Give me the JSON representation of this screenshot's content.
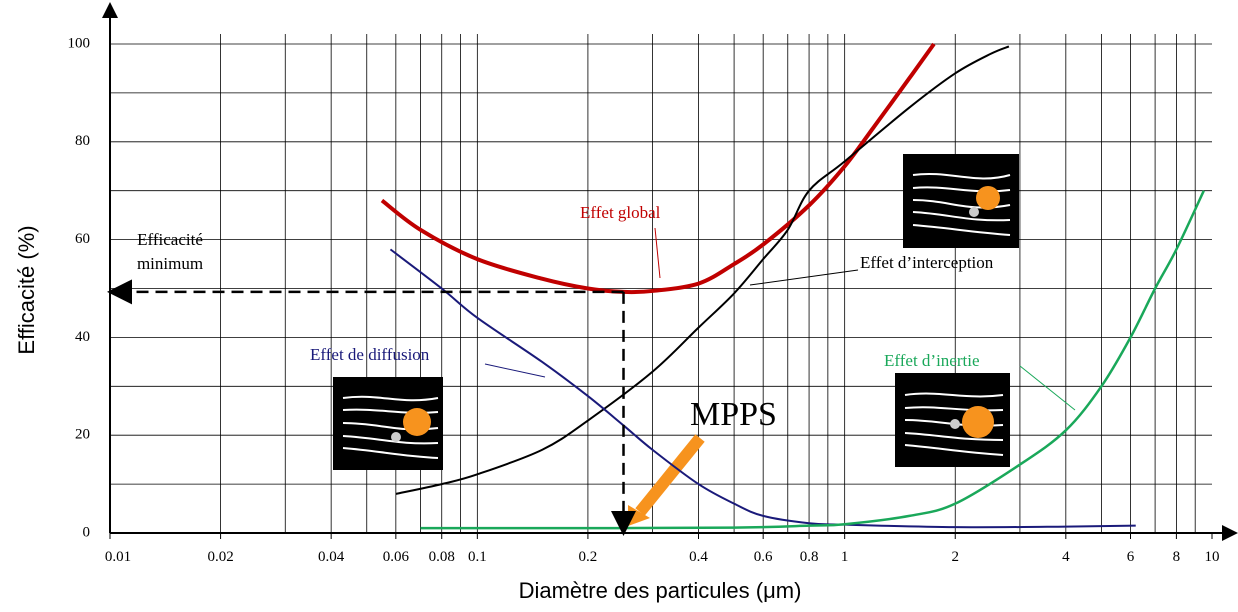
{
  "chart_data": {
    "type": "line",
    "x_label": "Diamètre des particules (μm)",
    "y_label": "Efficacité (%)",
    "xlim": [
      0.01,
      10
    ],
    "ylim": [
      0,
      100
    ],
    "log_x": true,
    "grid": true,
    "xticks": [
      0.01,
      0.02,
      0.04,
      0.06,
      0.08,
      0.1,
      0.2,
      0.4,
      0.6,
      0.8,
      1,
      2,
      4,
      6,
      8,
      10
    ],
    "yticks": [
      0,
      20,
      40,
      60,
      80,
      100
    ],
    "series": [
      {
        "name": "Effet global",
        "color": "#c00000",
        "x": [
          0.055,
          0.07,
          0.1,
          0.15,
          0.2,
          0.25,
          0.3,
          0.4,
          0.5,
          0.6,
          0.8,
          1,
          1.2,
          1.5,
          1.75
        ],
        "values": [
          68,
          62,
          56,
          52,
          50,
          49.3,
          49.5,
          51,
          55,
          59,
          67,
          75,
          83,
          93,
          100
        ]
      },
      {
        "name": "Effet d’interception",
        "color": "#000000",
        "x": [
          0.06,
          0.08,
          0.1,
          0.15,
          0.2,
          0.3,
          0.4,
          0.5,
          0.6,
          0.7,
          0.8,
          1,
          1.5,
          2,
          2.5,
          2.8
        ],
        "values": [
          8,
          10,
          12,
          17,
          23,
          33,
          42,
          49,
          56,
          62,
          70,
          76,
          87,
          94,
          98,
          99.5
        ]
      },
      {
        "name": "Effet de diffusion",
        "color": "#1a1a7a",
        "x": [
          0.058,
          0.08,
          0.1,
          0.15,
          0.2,
          0.25,
          0.3,
          0.4,
          0.5,
          0.6,
          0.8,
          1,
          2,
          4,
          6.2
        ],
        "values": [
          58,
          50,
          44,
          35,
          28,
          22,
          17,
          10,
          6,
          3.5,
          2,
          1.7,
          1.2,
          1.3,
          1.5
        ]
      },
      {
        "name": "Effet d’inertie",
        "color": "#1aa85a",
        "x": [
          0.07,
          0.2,
          0.5,
          0.8,
          1,
          1.5,
          2,
          3,
          4,
          5,
          6,
          7,
          8,
          9.5
        ],
        "values": [
          1,
          1,
          1.1,
          1.5,
          1.8,
          3.5,
          6,
          14,
          21,
          30,
          40,
          50,
          58,
          70
        ]
      }
    ],
    "annotations": [
      {
        "text": "Efficacité minimum"
      },
      {
        "text": "MPPS"
      }
    ]
  }
}
